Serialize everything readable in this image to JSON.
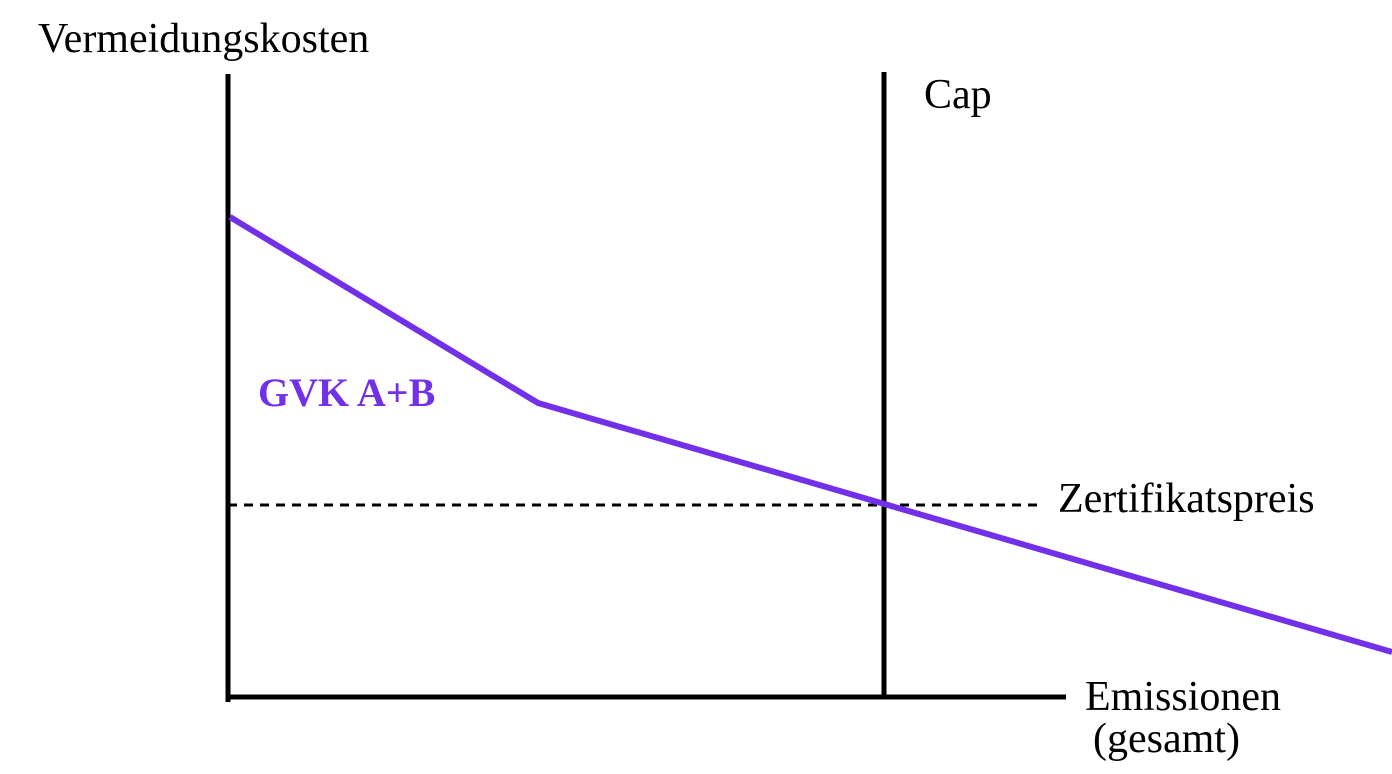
{
  "colors": {
    "curve": "#7230e8",
    "axis": "#000000"
  },
  "labels": {
    "y_axis": "Vermeidungskosten",
    "x_axis_line1": "Emissionen",
    "x_axis_line2": "(gesamt)",
    "cap": "Cap",
    "price": "Zertifikatspreis",
    "curve": "GVK A+B"
  }
}
